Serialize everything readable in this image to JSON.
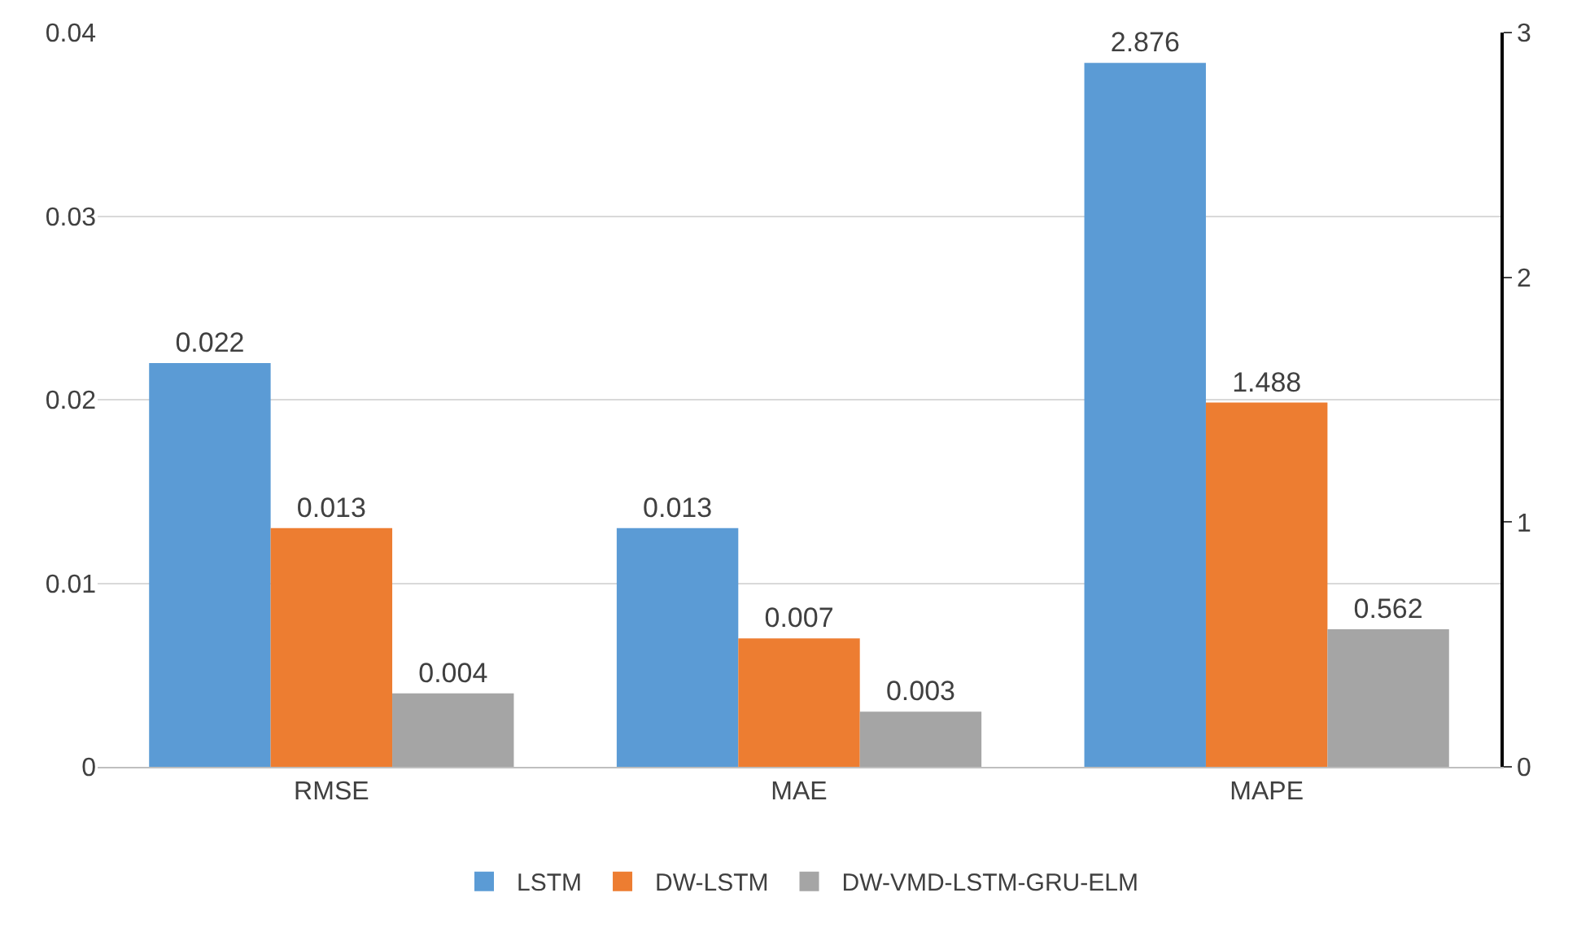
{
  "chart_data": {
    "type": "bar",
    "categories": [
      "RMSE",
      "MAE",
      "MAPE"
    ],
    "series": [
      {
        "name": "LSTM",
        "color": "#5b9bd5",
        "values": [
          0.022,
          0.013,
          null
        ],
        "axis": "y"
      },
      {
        "name": "DW-LSTM",
        "color": "#ed7d31",
        "values": [
          0.013,
          0.007,
          null
        ],
        "axis": "y"
      },
      {
        "name": "DW-VMD-LSTM-GRU-ELM",
        "color": "#a5a5a5",
        "values": [
          0.004,
          0.003,
          null
        ],
        "axis": "y"
      },
      {
        "color": "#5b9bd5",
        "values": [
          null,
          null,
          2.876
        ],
        "axis": "y2"
      },
      {
        "color": "#ed7d31",
        "values": [
          null,
          null,
          1.488
        ],
        "axis": "y2"
      },
      {
        "color": "#a5a5a5",
        "values": [
          null,
          null,
          0.562
        ],
        "axis": "y2"
      }
    ],
    "ylim": [
      0,
      0.04
    ],
    "yticks": [
      0,
      0.01,
      0.02,
      0.03,
      0.04
    ],
    "y2lim": [
      0,
      3
    ],
    "y2ticks": [
      0,
      1,
      2,
      3
    ],
    "data_labels": true,
    "grid": "y",
    "legend": "bottom"
  }
}
